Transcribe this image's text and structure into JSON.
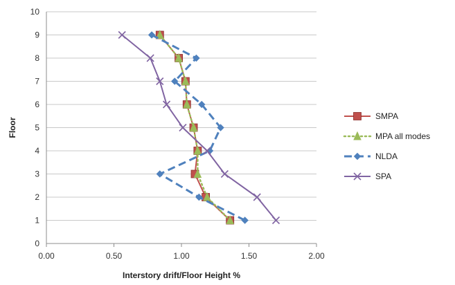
{
  "chart_data": {
    "type": "line",
    "title": "",
    "xlabel": "Interstory drift/Floor Height %",
    "ylabel": "Floor",
    "xlim": [
      0,
      2
    ],
    "ylim": [
      0,
      10
    ],
    "x_ticks": [
      "0.00",
      "0.50",
      "1.00",
      "1.50",
      "2.00"
    ],
    "y_ticks": [
      "0",
      "1",
      "2",
      "3",
      "4",
      "5",
      "6",
      "7",
      "8",
      "9",
      "10"
    ],
    "grid": "horizontal",
    "legend_position": "right",
    "series": [
      {
        "name": "SMPA",
        "color": "#c0504d",
        "marker": "square",
        "line_style": "solid",
        "points": [
          [
            1.36,
            1
          ],
          [
            1.18,
            2
          ],
          [
            1.1,
            3
          ],
          [
            1.12,
            4
          ],
          [
            1.09,
            5
          ],
          [
            1.04,
            6
          ],
          [
            1.03,
            7
          ],
          [
            0.98,
            8
          ],
          [
            0.84,
            9
          ]
        ]
      },
      {
        "name": "MPA all modes",
        "color": "#9bbb59",
        "marker": "triangle",
        "line_style": "dotted",
        "points": [
          [
            1.36,
            1
          ],
          [
            1.19,
            2
          ],
          [
            1.12,
            3
          ],
          [
            1.12,
            4
          ],
          [
            1.09,
            5
          ],
          [
            1.04,
            6
          ],
          [
            1.03,
            7
          ],
          [
            0.98,
            8
          ],
          [
            0.84,
            9
          ]
        ]
      },
      {
        "name": "NLDA",
        "color": "#4f81bd",
        "marker": "diamond",
        "line_style": "dashed",
        "points": [
          [
            1.47,
            1
          ],
          [
            1.13,
            2
          ],
          [
            0.84,
            3
          ],
          [
            1.21,
            4
          ],
          [
            1.29,
            5
          ],
          [
            1.15,
            6
          ],
          [
            0.95,
            7
          ],
          [
            1.11,
            8
          ],
          [
            0.78,
            9
          ]
        ]
      },
      {
        "name": "SPA",
        "color": "#8064a2",
        "marker": "x",
        "line_style": "solid",
        "points": [
          [
            1.7,
            1
          ],
          [
            1.56,
            2
          ],
          [
            1.32,
            3
          ],
          [
            1.19,
            4
          ],
          [
            1.01,
            5
          ],
          [
            0.89,
            6
          ],
          [
            0.84,
            7
          ],
          [
            0.77,
            8
          ],
          [
            0.56,
            9
          ]
        ]
      }
    ]
  }
}
